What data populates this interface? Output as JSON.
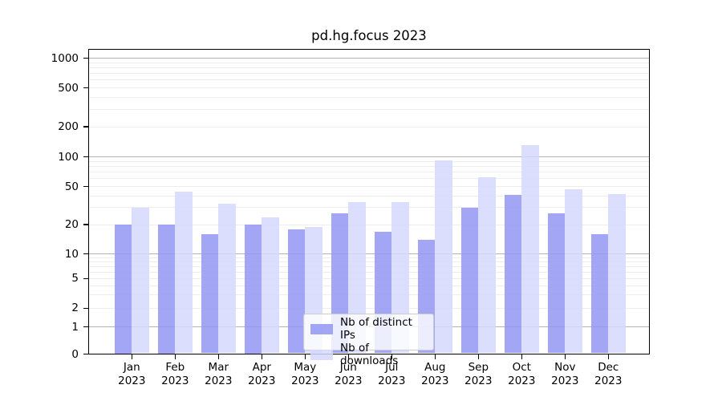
{
  "chart_data": {
    "type": "bar",
    "title": "pd.hg.focus 2023",
    "xlabel": "",
    "ylabel": "",
    "y_scale": "log-like (symlog: 0 baseline, log above 1)",
    "y_ticks": [
      0,
      1,
      2,
      5,
      10,
      20,
      50,
      100,
      200,
      500,
      1000
    ],
    "ylim": [
      0,
      1250
    ],
    "grid": {
      "major_color": "#b3b3b3",
      "minor_color": "#ededed",
      "majors_at": [
        1,
        10,
        100,
        1000
      ]
    },
    "categories": [
      {
        "month": "Jan",
        "year": "2023"
      },
      {
        "month": "Feb",
        "year": "2023"
      },
      {
        "month": "Mar",
        "year": "2023"
      },
      {
        "month": "Apr",
        "year": "2023"
      },
      {
        "month": "May",
        "year": "2023"
      },
      {
        "month": "Jun",
        "year": "2023"
      },
      {
        "month": "Jul",
        "year": "2023"
      },
      {
        "month": "Aug",
        "year": "2023"
      },
      {
        "month": "Sep",
        "year": "2023"
      },
      {
        "month": "Oct",
        "year": "2023"
      },
      {
        "month": "Nov",
        "year": "2023"
      },
      {
        "month": "Dec",
        "year": "2023"
      }
    ],
    "series": [
      {
        "name": "Nb of distinct IPs",
        "color": "#9297f3",
        "alpha": 0.85,
        "values": [
          20,
          20,
          16,
          20,
          18,
          26,
          17,
          14,
          30,
          41,
          26,
          16
        ]
      },
      {
        "name": "Nb of downloads",
        "color": "#d5d8fb",
        "alpha": 0.85,
        "values": [
          30,
          44,
          33,
          24,
          19,
          34,
          34,
          92,
          62,
          130,
          47,
          42
        ]
      }
    ],
    "legend": {
      "position": "lower center inside plot",
      "items": [
        "Nb of distinct IPs",
        "Nb of downloads"
      ]
    }
  }
}
